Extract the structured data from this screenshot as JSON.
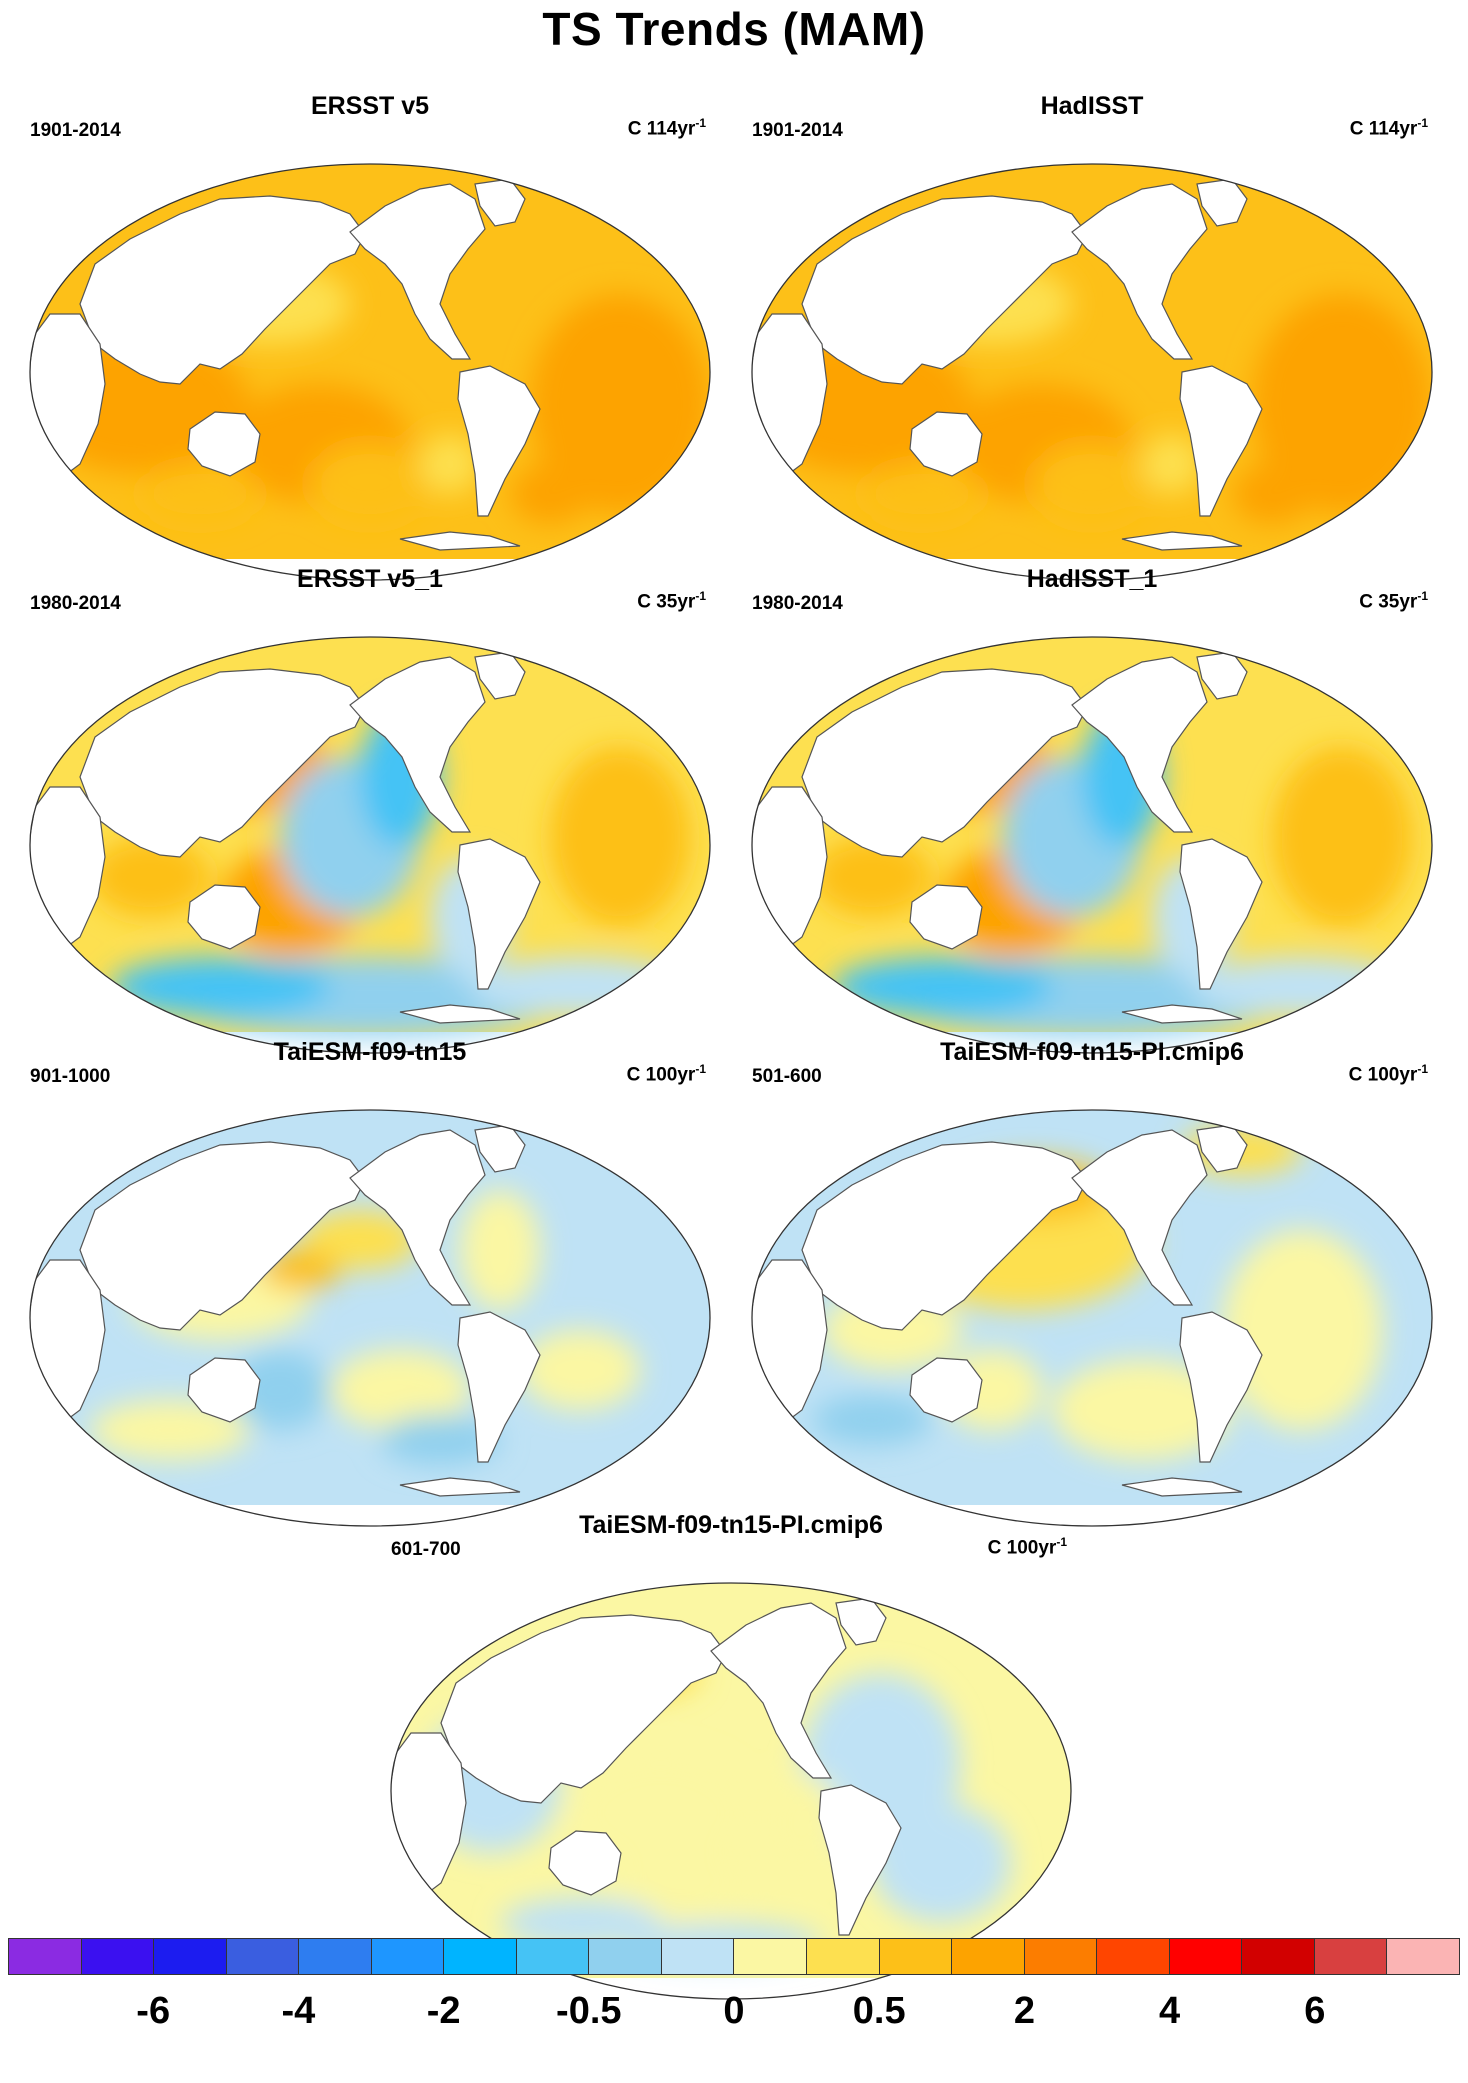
{
  "title": "TS Trends (MAM)",
  "panels": [
    {
      "title": "ERSST v5",
      "period": "1901-2014",
      "units": "C 114yr",
      "units_exp": "-1",
      "pattern": "warm-strong"
    },
    {
      "title": "HadISST",
      "period": "1901-2014",
      "units": "C 114yr",
      "units_exp": "-1",
      "pattern": "warm-strong"
    },
    {
      "title": "ERSST v5_1",
      "period": "1980-2014",
      "units": "C 35yr",
      "units_exp": "-1",
      "pattern": "la-nina"
    },
    {
      "title": "HadISST_1",
      "period": "1980-2014",
      "units": "C 35yr",
      "units_exp": "-1",
      "pattern": "la-nina"
    },
    {
      "title": "TaiESM-f09-tn15",
      "period": "901-1000",
      "units": "C 100yr",
      "units_exp": "-1",
      "pattern": "weak-cool"
    },
    {
      "title": "TaiESM-f09-tn15-PI.cmip6",
      "period": "501-600",
      "units": "C 100yr",
      "units_exp": "-1",
      "pattern": "weak-warm-npac"
    },
    {
      "title": "TaiESM-f09-tn15-PI.cmip6",
      "period": "601-700",
      "units": "C 100yr",
      "units_exp": "-1",
      "pattern": "weak-mixed"
    }
  ],
  "colorbar": {
    "colors": [
      "#8b2be2",
      "#3b10f0",
      "#1c1cf0",
      "#3a5ee0",
      "#2e7df0",
      "#1e96ff",
      "#00b4ff",
      "#45c3f5",
      "#90d0ee",
      "#bfe2f5",
      "#fbf7a3",
      "#fde050",
      "#fdc018",
      "#fda300",
      "#fc7d00",
      "#ff4500",
      "#ff0000",
      "#d20000",
      "#d84040",
      "#fbb4b4"
    ],
    "labels": [
      "-6",
      "-4",
      "-2",
      "-0.5",
      "0",
      "0.5",
      "2",
      "4",
      "6"
    ]
  }
}
